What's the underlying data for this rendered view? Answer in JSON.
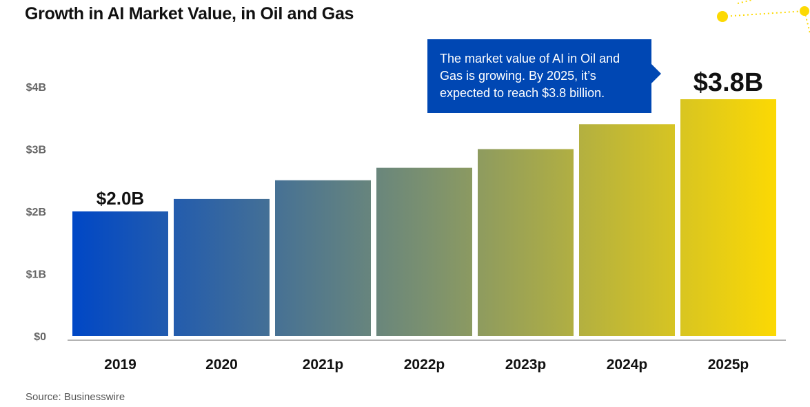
{
  "title": "Growth in AI Market Value, in Oil and Gas",
  "source": "Source: Businesswire",
  "callout": {
    "text": "The market value of AI in Oil and Gas is growing. By 2025, it’s expected to reach $3.8 billion."
  },
  "colors": {
    "gradient_start": "#0047c6",
    "gradient_mid": "#7a9070",
    "gradient_end": "#fcd903",
    "callout_bg": "#0047b3",
    "accent_yellow": "#fcd903"
  },
  "chart_data": {
    "type": "bar",
    "categories": [
      "2019",
      "2020",
      "2021p",
      "2022p",
      "2023p",
      "2024p",
      "2025p"
    ],
    "values": [
      2.0,
      2.2,
      2.5,
      2.7,
      3.0,
      3.4,
      3.8
    ],
    "value_labels": [
      "$2.0B",
      "",
      "",
      "",
      "",
      "",
      "$3.8B"
    ],
    "yticks": [
      0,
      1,
      2,
      3,
      4
    ],
    "ytick_labels": [
      "$0",
      "$1B",
      "$2B",
      "$3B",
      "$4B"
    ],
    "ylim": [
      0,
      4
    ],
    "grid": false,
    "legend": false
  }
}
